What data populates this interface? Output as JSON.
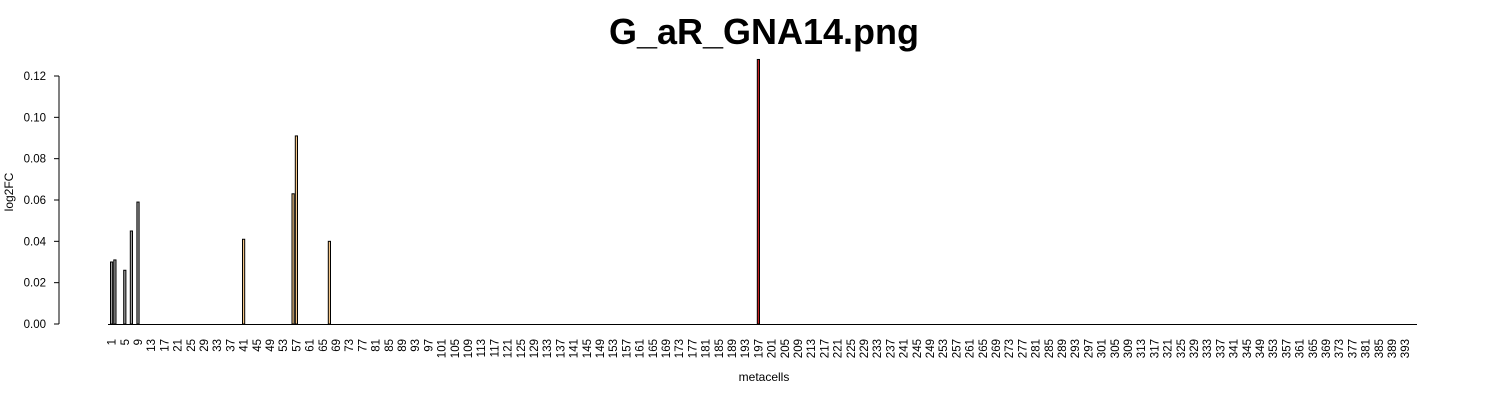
{
  "chart_data": {
    "type": "bar",
    "title": "G_aR_GNA14.png",
    "xlabel": "metacells",
    "ylabel": "log2FC",
    "ylim": [
      0,
      0.128
    ],
    "yticks": [
      0.0,
      0.02,
      0.04,
      0.06,
      0.08,
      0.1,
      0.12
    ],
    "ytick_labels": [
      "0.00",
      "0.02",
      "0.04",
      "0.06",
      "0.08",
      "0.10",
      "0.12"
    ],
    "n_categories": 395,
    "xtick_labels": [
      "1",
      "5",
      "9",
      "13",
      "17",
      "21",
      "25",
      "29",
      "33",
      "37",
      "41",
      "45",
      "49",
      "53",
      "57",
      "61",
      "65",
      "69",
      "73",
      "77",
      "81",
      "85",
      "89",
      "93",
      "97",
      "101",
      "105",
      "109",
      "113",
      "117",
      "121",
      "125",
      "129",
      "133",
      "137",
      "141",
      "145",
      "149",
      "153",
      "157",
      "161",
      "165",
      "169",
      "173",
      "177",
      "181",
      "185",
      "189",
      "193",
      "197",
      "201",
      "205",
      "209",
      "213",
      "217",
      "221",
      "225",
      "229",
      "233",
      "237",
      "241",
      "245",
      "249",
      "253",
      "257",
      "261",
      "265",
      "269",
      "273",
      "277",
      "281",
      "285",
      "289",
      "293",
      "297",
      "301",
      "305",
      "309",
      "313",
      "317",
      "321",
      "325",
      "329",
      "333",
      "337",
      "341",
      "345",
      "349",
      "353",
      "357",
      "361",
      "365",
      "369",
      "373",
      "377",
      "381",
      "385",
      "389",
      "393"
    ],
    "bars": [
      {
        "x": 1,
        "value": 0.03,
        "color": "#a0a0a0"
      },
      {
        "x": 2,
        "value": 0.031,
        "color": "#a0a0a0"
      },
      {
        "x": 5,
        "value": 0.026,
        "color": "#a0a0a0"
      },
      {
        "x": 7,
        "value": 0.045,
        "color": "#a0a0a0"
      },
      {
        "x": 9,
        "value": 0.059,
        "color": "#a0a0a0"
      },
      {
        "x": 41,
        "value": 0.041,
        "color": "#f4c78a"
      },
      {
        "x": 56,
        "value": 0.063,
        "color": "#f4c78a"
      },
      {
        "x": 57,
        "value": 0.091,
        "color": "#f4c78a"
      },
      {
        "x": 67,
        "value": 0.04,
        "color": "#f4c78a"
      },
      {
        "x": 197,
        "value": 0.128,
        "color": "#c41f1f"
      }
    ]
  }
}
